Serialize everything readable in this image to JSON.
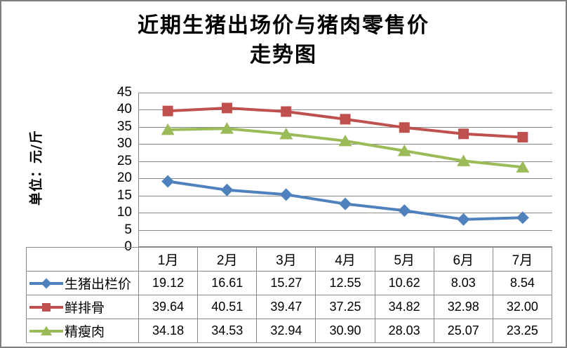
{
  "title": {
    "line1": "近期生猪出场价与猪肉零售价",
    "line2": "走势图"
  },
  "y_axis_title": "单位：元/斤",
  "chart_data": {
    "type": "line",
    "title": "近期生猪出场价与猪肉零售价 走势图",
    "xlabel": "",
    "ylabel": "单位：元/斤",
    "categories": [
      "1月",
      "2月",
      "3月",
      "4月",
      "5月",
      "6月",
      "7月"
    ],
    "series": [
      {
        "name": "生猪出栏价",
        "marker": "diamond",
        "color": "#4F81BD",
        "values": [
          19.12,
          16.61,
          15.27,
          12.55,
          10.62,
          8.03,
          8.54
        ]
      },
      {
        "name": "鲜排骨",
        "marker": "square",
        "color": "#C0504D",
        "values": [
          39.64,
          40.51,
          39.47,
          37.25,
          34.82,
          32.98,
          32.0
        ]
      },
      {
        "name": "精瘦肉",
        "marker": "triangle",
        "color": "#9BBB59",
        "values": [
          34.18,
          34.53,
          32.94,
          30.9,
          28.03,
          25.07,
          23.25
        ]
      }
    ],
    "ylim": [
      0,
      45
    ],
    "ytick_step": 5,
    "grid": true,
    "legend_position": "table-left",
    "value_decimals": 2
  },
  "colors": {
    "gridline": "#8a8a8a",
    "axis": "#8a8a8a",
    "table_border": "#8a8a8a",
    "frame_border": "#7f7f7f",
    "background": "#ffffff",
    "text": "#000000"
  }
}
